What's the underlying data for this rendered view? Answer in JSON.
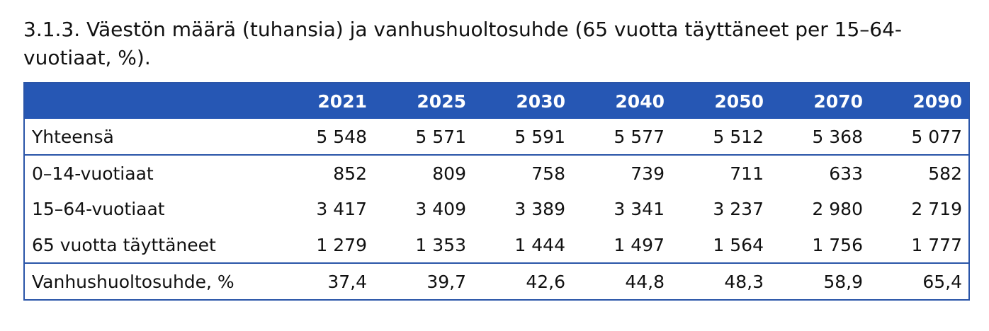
{
  "caption": "3.1.3. Väestön määrä (tuhansia) ja vanhushuoltosuhde (65 vuotta täyttäneet per 15–64-vuotiaat, %).",
  "colors": {
    "header_bg": "#2657b4",
    "header_text": "#ffffff",
    "border": "#2a55a8"
  },
  "table": {
    "header_label": "",
    "columns": [
      "2021",
      "2025",
      "2030",
      "2040",
      "2050",
      "2070",
      "2090"
    ],
    "rows": [
      {
        "label": "Yhteensä",
        "values": [
          "5 548",
          "5 571",
          "5 591",
          "5 577",
          "5 512",
          "5 368",
          "5 077"
        ]
      },
      {
        "label": "0–14-vuotiaat",
        "values": [
          "852",
          "809",
          "758",
          "739",
          "711",
          "633",
          "582"
        ]
      },
      {
        "label": "15–64-vuotiaat",
        "values": [
          "3 417",
          "3 409",
          "3 389",
          "3 341",
          "3 237",
          "2 980",
          "2 719"
        ]
      },
      {
        "label": "65 vuotta täyttäneet",
        "values": [
          "1 279",
          "1 353",
          "1 444",
          "1 497",
          "1 564",
          "1 756",
          "1 777"
        ]
      },
      {
        "label": "Vanhushuoltosuhde, %",
        "values": [
          "37,4",
          "39,7",
          "42,6",
          "44,8",
          "48,3",
          "58,9",
          "65,4"
        ]
      }
    ]
  }
}
